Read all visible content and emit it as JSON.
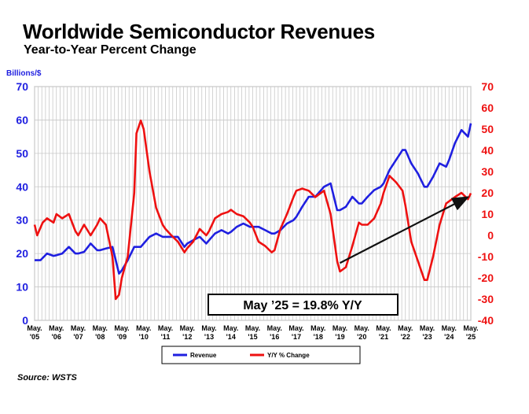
{
  "title": "Worldwide Semiconductor Revenues",
  "subtitle": "Year-to-Year Percent Change",
  "source": "Source: WSTS",
  "colors": {
    "revenue": "#1f1fe0",
    "yoy": "#ee1111",
    "grid": "#c8c8c8"
  },
  "chart_data": {
    "type": "line",
    "title": "Worldwide Semiconductor Revenues",
    "subtitle": "Year-to-Year Percent Change",
    "left_axis": {
      "label": "Billions/$",
      "range": [
        0,
        70
      ],
      "ticks": [
        "0",
        "10",
        "20",
        "30",
        "40",
        "50",
        "60",
        "70"
      ]
    },
    "right_axis": {
      "range": [
        -40,
        70
      ],
      "ticks": [
        "-40",
        "-30",
        "-20",
        "-10",
        "0",
        "10",
        "20",
        "30",
        "40",
        "50",
        "60",
        "70"
      ]
    },
    "x_ticks": [
      {
        "t": 2005.33,
        "top": "May.",
        "bottom": "'05"
      },
      {
        "t": 2006.33,
        "top": "May.",
        "bottom": "'06"
      },
      {
        "t": 2007.33,
        "top": "May.",
        "bottom": "'07"
      },
      {
        "t": 2008.33,
        "top": "May.",
        "bottom": "'08"
      },
      {
        "t": 2009.33,
        "top": "May.",
        "bottom": "'09"
      },
      {
        "t": 2010.33,
        "top": "May.",
        "bottom": "'10"
      },
      {
        "t": 2011.33,
        "top": "May.",
        "bottom": "'11"
      },
      {
        "t": 2012.33,
        "top": "May.",
        "bottom": "'12"
      },
      {
        "t": 2013.33,
        "top": "May.",
        "bottom": "'13"
      },
      {
        "t": 2014.33,
        "top": "May.",
        "bottom": "'14"
      },
      {
        "t": 2015.33,
        "top": "May.",
        "bottom": "'15"
      },
      {
        "t": 2016.33,
        "top": "May.",
        "bottom": "'16"
      },
      {
        "t": 2017.33,
        "top": "May.",
        "bottom": "'17"
      },
      {
        "t": 2018.33,
        "top": "May.",
        "bottom": "'18"
      },
      {
        "t": 2019.33,
        "top": "May.",
        "bottom": "'19"
      },
      {
        "t": 2020.33,
        "top": "May.",
        "bottom": "'20"
      },
      {
        "t": 2021.33,
        "top": "May.",
        "bottom": "'21"
      },
      {
        "t": 2022.33,
        "top": "May.",
        "bottom": "'22"
      },
      {
        "t": 2023.33,
        "top": "May.",
        "bottom": "'23"
      },
      {
        "t": 2024.33,
        "top": "May.",
        "bottom": "'24"
      },
      {
        "t": 2025.33,
        "top": "May.",
        "bottom": "'25"
      }
    ],
    "x_range": [
      2005.33,
      2025.33
    ],
    "grid": true,
    "legend_placement": "bottom-center",
    "series": [
      {
        "name": "Revenue",
        "axis": "left",
        "points": [
          [
            2005.33,
            18
          ],
          [
            2005.6,
            18
          ],
          [
            2005.9,
            20
          ],
          [
            2006.2,
            19.3
          ],
          [
            2006.33,
            19.5
          ],
          [
            2006.6,
            20
          ],
          [
            2006.9,
            22
          ],
          [
            2007.2,
            20
          ],
          [
            2007.33,
            20
          ],
          [
            2007.6,
            20.5
          ],
          [
            2007.9,
            23
          ],
          [
            2008.2,
            21
          ],
          [
            2008.33,
            21
          ],
          [
            2008.6,
            21.5
          ],
          [
            2008.9,
            22
          ],
          [
            2009.2,
            14
          ],
          [
            2009.33,
            15
          ],
          [
            2009.6,
            18
          ],
          [
            2009.9,
            22
          ],
          [
            2010.2,
            22
          ],
          [
            2010.33,
            23
          ],
          [
            2010.6,
            25
          ],
          [
            2010.9,
            26
          ],
          [
            2011.2,
            25
          ],
          [
            2011.33,
            25
          ],
          [
            2011.6,
            25
          ],
          [
            2011.9,
            25
          ],
          [
            2012.2,
            22
          ],
          [
            2012.33,
            23
          ],
          [
            2012.6,
            24
          ],
          [
            2012.9,
            25
          ],
          [
            2013.2,
            23
          ],
          [
            2013.33,
            24
          ],
          [
            2013.6,
            26
          ],
          [
            2013.9,
            27
          ],
          [
            2014.2,
            26
          ],
          [
            2014.33,
            26.5
          ],
          [
            2014.6,
            28
          ],
          [
            2014.9,
            29
          ],
          [
            2015.2,
            28
          ],
          [
            2015.33,
            28
          ],
          [
            2015.6,
            28
          ],
          [
            2015.9,
            27
          ],
          [
            2016.2,
            26
          ],
          [
            2016.33,
            26
          ],
          [
            2016.6,
            27
          ],
          [
            2016.9,
            29
          ],
          [
            2017.2,
            30
          ],
          [
            2017.33,
            31
          ],
          [
            2017.6,
            34
          ],
          [
            2017.9,
            37
          ],
          [
            2018.2,
            37
          ],
          [
            2018.33,
            38
          ],
          [
            2018.6,
            40
          ],
          [
            2018.9,
            41
          ],
          [
            2019.2,
            33
          ],
          [
            2019.33,
            33
          ],
          [
            2019.6,
            34
          ],
          [
            2019.9,
            37
          ],
          [
            2020.2,
            35
          ],
          [
            2020.33,
            35
          ],
          [
            2020.6,
            37
          ],
          [
            2020.9,
            39
          ],
          [
            2021.2,
            40
          ],
          [
            2021.33,
            41
          ],
          [
            2021.6,
            45
          ],
          [
            2021.9,
            48
          ],
          [
            2022.2,
            51
          ],
          [
            2022.33,
            51
          ],
          [
            2022.6,
            47
          ],
          [
            2022.9,
            44
          ],
          [
            2023.2,
            40
          ],
          [
            2023.33,
            40
          ],
          [
            2023.6,
            43
          ],
          [
            2023.9,
            47
          ],
          [
            2024.2,
            46
          ],
          [
            2024.33,
            48
          ],
          [
            2024.6,
            53
          ],
          [
            2024.9,
            57
          ],
          [
            2025.2,
            55
          ],
          [
            2025.33,
            59
          ]
        ]
      },
      {
        "name": "Y/Y % Change",
        "axis": "right",
        "points": [
          [
            2005.33,
            5
          ],
          [
            2005.45,
            0
          ],
          [
            2005.7,
            6
          ],
          [
            2005.9,
            8
          ],
          [
            2006.2,
            6
          ],
          [
            2006.33,
            10
          ],
          [
            2006.6,
            8
          ],
          [
            2006.9,
            10
          ],
          [
            2007.2,
            2
          ],
          [
            2007.33,
            0
          ],
          [
            2007.6,
            5
          ],
          [
            2007.9,
            0
          ],
          [
            2008.2,
            5
          ],
          [
            2008.33,
            8
          ],
          [
            2008.6,
            5
          ],
          [
            2008.9,
            -10
          ],
          [
            2009.05,
            -30
          ],
          [
            2009.2,
            -28
          ],
          [
            2009.33,
            -20
          ],
          [
            2009.6,
            -10
          ],
          [
            2009.9,
            20
          ],
          [
            2010.0,
            48
          ],
          [
            2010.2,
            54
          ],
          [
            2010.33,
            50
          ],
          [
            2010.6,
            30
          ],
          [
            2010.9,
            13
          ],
          [
            2011.2,
            5
          ],
          [
            2011.33,
            3
          ],
          [
            2011.6,
            0
          ],
          [
            2011.9,
            -3
          ],
          [
            2012.2,
            -8
          ],
          [
            2012.33,
            -6
          ],
          [
            2012.6,
            -3
          ],
          [
            2012.9,
            3
          ],
          [
            2013.2,
            0
          ],
          [
            2013.33,
            2
          ],
          [
            2013.6,
            8
          ],
          [
            2013.9,
            10
          ],
          [
            2014.2,
            11
          ],
          [
            2014.33,
            12
          ],
          [
            2014.6,
            10
          ],
          [
            2014.9,
            9
          ],
          [
            2015.2,
            6
          ],
          [
            2015.33,
            4
          ],
          [
            2015.6,
            -3
          ],
          [
            2015.9,
            -5
          ],
          [
            2016.2,
            -8
          ],
          [
            2016.33,
            -7
          ],
          [
            2016.6,
            3
          ],
          [
            2016.9,
            10
          ],
          [
            2017.2,
            18
          ],
          [
            2017.33,
            21
          ],
          [
            2017.6,
            22
          ],
          [
            2017.9,
            21
          ],
          [
            2018.2,
            18
          ],
          [
            2018.33,
            19
          ],
          [
            2018.6,
            21
          ],
          [
            2018.9,
            10
          ],
          [
            2019.2,
            -12
          ],
          [
            2019.33,
            -17
          ],
          [
            2019.6,
            -15
          ],
          [
            2019.9,
            -5
          ],
          [
            2020.2,
            6
          ],
          [
            2020.33,
            5
          ],
          [
            2020.6,
            5
          ],
          [
            2020.9,
            8
          ],
          [
            2021.2,
            15
          ],
          [
            2021.33,
            20
          ],
          [
            2021.6,
            28
          ],
          [
            2021.9,
            25
          ],
          [
            2022.2,
            21
          ],
          [
            2022.33,
            14
          ],
          [
            2022.6,
            -3
          ],
          [
            2022.9,
            -12
          ],
          [
            2023.2,
            -21
          ],
          [
            2023.33,
            -21
          ],
          [
            2023.6,
            -10
          ],
          [
            2023.9,
            5
          ],
          [
            2024.2,
            15
          ],
          [
            2024.33,
            16
          ],
          [
            2024.6,
            18
          ],
          [
            2024.9,
            20
          ],
          [
            2025.2,
            17
          ],
          [
            2025.33,
            19.8
          ]
        ]
      }
    ],
    "annotations": [
      {
        "type": "box",
        "text": "May ’25 = 19.8% Y/Y"
      },
      {
        "type": "arrow",
        "from": [
          2019.33,
          -13
        ],
        "to": [
          2025.2,
          18
        ],
        "axis": "right"
      }
    ],
    "legend": [
      {
        "label": "Revenue",
        "color": "#1f1fe0"
      },
      {
        "label": "Y/Y % Change",
        "color": "#ee1111"
      }
    ]
  }
}
